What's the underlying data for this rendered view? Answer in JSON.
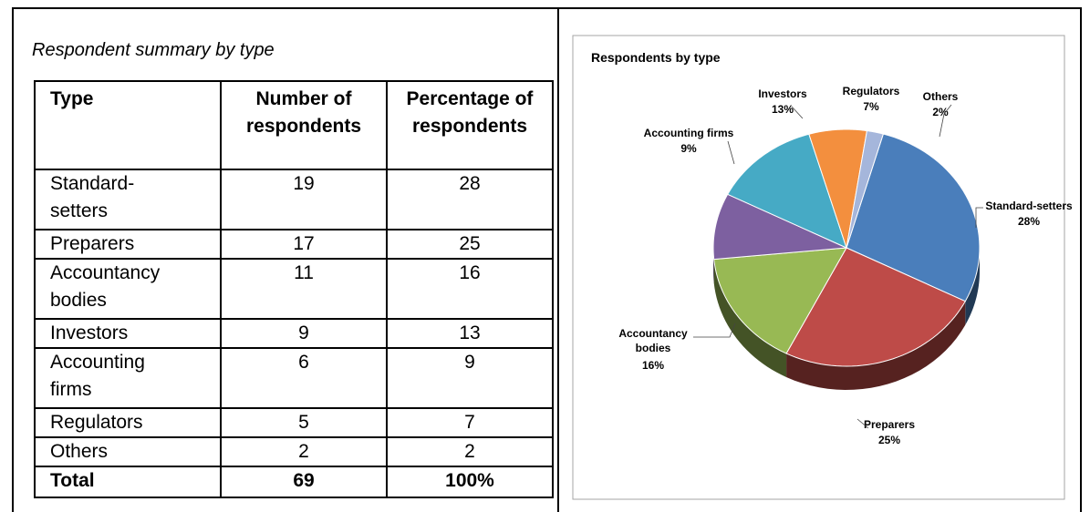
{
  "caption": "Respondent summary by type",
  "table": {
    "header": [
      "Type",
      "Number of respondents",
      "Percentage of respondents"
    ],
    "rows": [
      [
        "Standard-setters",
        19,
        28
      ],
      [
        "Preparers",
        17,
        25
      ],
      [
        "Accountancy bodies",
        11,
        16
      ],
      [
        "Investors",
        9,
        13
      ],
      [
        "Accounting firms",
        6,
        9
      ],
      [
        "Regulators",
        5,
        7
      ],
      [
        "Others",
        2,
        2
      ]
    ],
    "total": [
      "Total",
      69,
      "100%"
    ]
  },
  "chart_data": {
    "type": "pie",
    "title": "Respondents by type",
    "categories": [
      "Standard-setters",
      "Preparers",
      "Accountancy bodies",
      "Accounting firms",
      "Investors",
      "Regulators",
      "Others"
    ],
    "values": [
      28,
      25,
      16,
      9,
      13,
      7,
      2
    ],
    "value_labels": [
      "28%",
      "25%",
      "16%",
      "9%",
      "13%",
      "7%",
      "2%"
    ],
    "colors": [
      "#4a7ebb",
      "#be4b48",
      "#98b954",
      "#7d60a0",
      "#46aac5",
      "#f38f3e",
      "#a5b6db"
    ]
  }
}
